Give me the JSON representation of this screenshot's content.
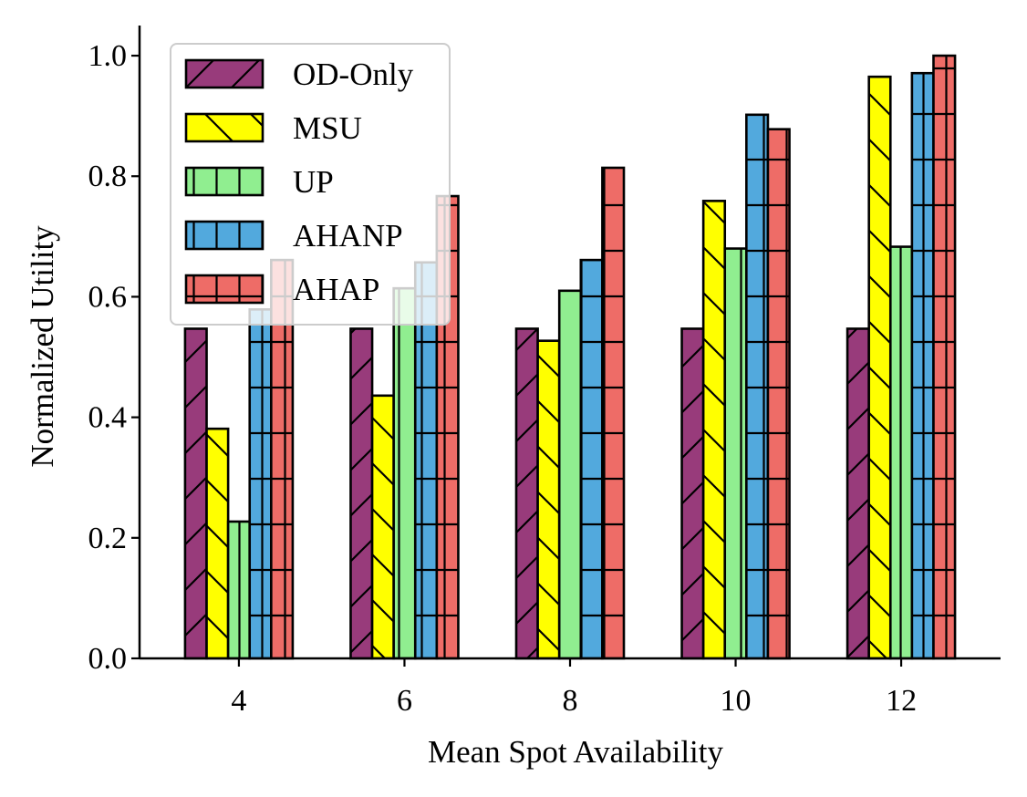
{
  "chart_data": {
    "type": "bar",
    "title": "",
    "xlabel": "Mean Spot Availability",
    "ylabel": "Normalized Utility",
    "categories": [
      "4",
      "6",
      "8",
      "10",
      "12"
    ],
    "x": [
      4,
      6,
      8,
      10,
      12
    ],
    "xlim": [
      2.8,
      13.2
    ],
    "ylim": [
      0.0,
      1.05
    ],
    "yticks": [
      0.0,
      0.2,
      0.4,
      0.6,
      0.8,
      1.0
    ],
    "ytick_labels": [
      "0.0",
      "0.2",
      "0.4",
      "0.6",
      "0.8",
      "1.0"
    ],
    "grid": false,
    "legend_position": "top-left",
    "series": [
      {
        "name": "OD-Only",
        "color": "#983b7b",
        "hatch": "forward-diagonal",
        "values": [
          0.547,
          0.547,
          0.547,
          0.547,
          0.547
        ]
      },
      {
        "name": "MSU",
        "color": "#ffff00",
        "hatch": "back-diagonal",
        "values": [
          0.381,
          0.436,
          0.527,
          0.759,
          0.965
        ]
      },
      {
        "name": "UP",
        "color": "#90ee90",
        "hatch": "vertical",
        "values": [
          0.227,
          0.614,
          0.61,
          0.68,
          0.683
        ]
      },
      {
        "name": "AHANP",
        "color": "#52a9dd",
        "hatch": "grid",
        "values": [
          0.579,
          0.657,
          0.661,
          0.902,
          0.971
        ]
      },
      {
        "name": "AHAP",
        "color": "#ee6c67",
        "hatch": "grid",
        "values": [
          0.661,
          0.767,
          0.814,
          0.878,
          1.0
        ]
      }
    ]
  }
}
